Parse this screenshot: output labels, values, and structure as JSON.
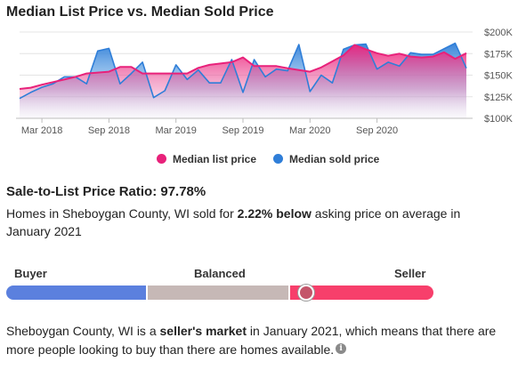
{
  "title": "Median List Price vs. Median Sold Price",
  "chart_data": {
    "type": "line",
    "x_tick_labels": [
      "Mar 2018",
      "Sep 2018",
      "Mar 2019",
      "Sep 2019",
      "Mar 2020",
      "Sep 2020"
    ],
    "y_tick_labels": [
      "$200K",
      "$175K",
      "$150K",
      "$125K",
      "$100K"
    ],
    "ylim": [
      100000,
      200000
    ],
    "x_start": "Jan 2018",
    "series": [
      {
        "name": "Median list price",
        "color": "#e8217a",
        "values": [
          134000,
          135500,
          139000,
          142000,
          145000,
          148000,
          152000,
          153000,
          154000,
          159500,
          159500,
          152000,
          152000,
          152000,
          152000,
          152000,
          158500,
          162000,
          163500,
          165000,
          170500,
          160500,
          160500,
          160500,
          158000,
          156000,
          154000,
          159000,
          166000,
          173000,
          185000,
          180000,
          175500,
          172500,
          175000,
          171500,
          170500,
          171500,
          176500,
          169000,
          175500
        ]
      },
      {
        "name": "Median sold price",
        "color": "#2f7ed8",
        "values": [
          123000,
          130000,
          136000,
          140000,
          148000,
          148000,
          140000,
          178000,
          181000,
          140000,
          152000,
          165000,
          124000,
          132000,
          162000,
          145000,
          156000,
          141000,
          141000,
          168000,
          130000,
          168000,
          148000,
          157000,
          155000,
          185500,
          131000,
          150000,
          141000,
          180000,
          185000,
          186000,
          157000,
          165000,
          160500,
          176000,
          174000,
          174000,
          180500,
          187000,
          158000
        ]
      }
    ]
  },
  "ratio": {
    "title": "Sale-to-List Price Ratio: 97.78%",
    "text_pre": "Homes in Sheboygan County, WI sold for ",
    "text_bold": "2.22% below",
    "text_post": " asking price on average in January 2021"
  },
  "scale": {
    "buyer_label": "Buyer",
    "balanced_label": "Balanced",
    "seller_label": "Seller",
    "buyer_color": "#5b80de",
    "balanced_color": "#c6b8b6",
    "seller_color": "#f73f6b",
    "marker_color": "#c4556a",
    "marker_position_fraction": 0.7
  },
  "market": {
    "text_pre": "Sheboygan County, WI is a ",
    "text_bold": "seller's market",
    "text_post": " in January 2021, which means that there are more people looking to buy than there are homes available.",
    "info_icon": "info-icon"
  }
}
